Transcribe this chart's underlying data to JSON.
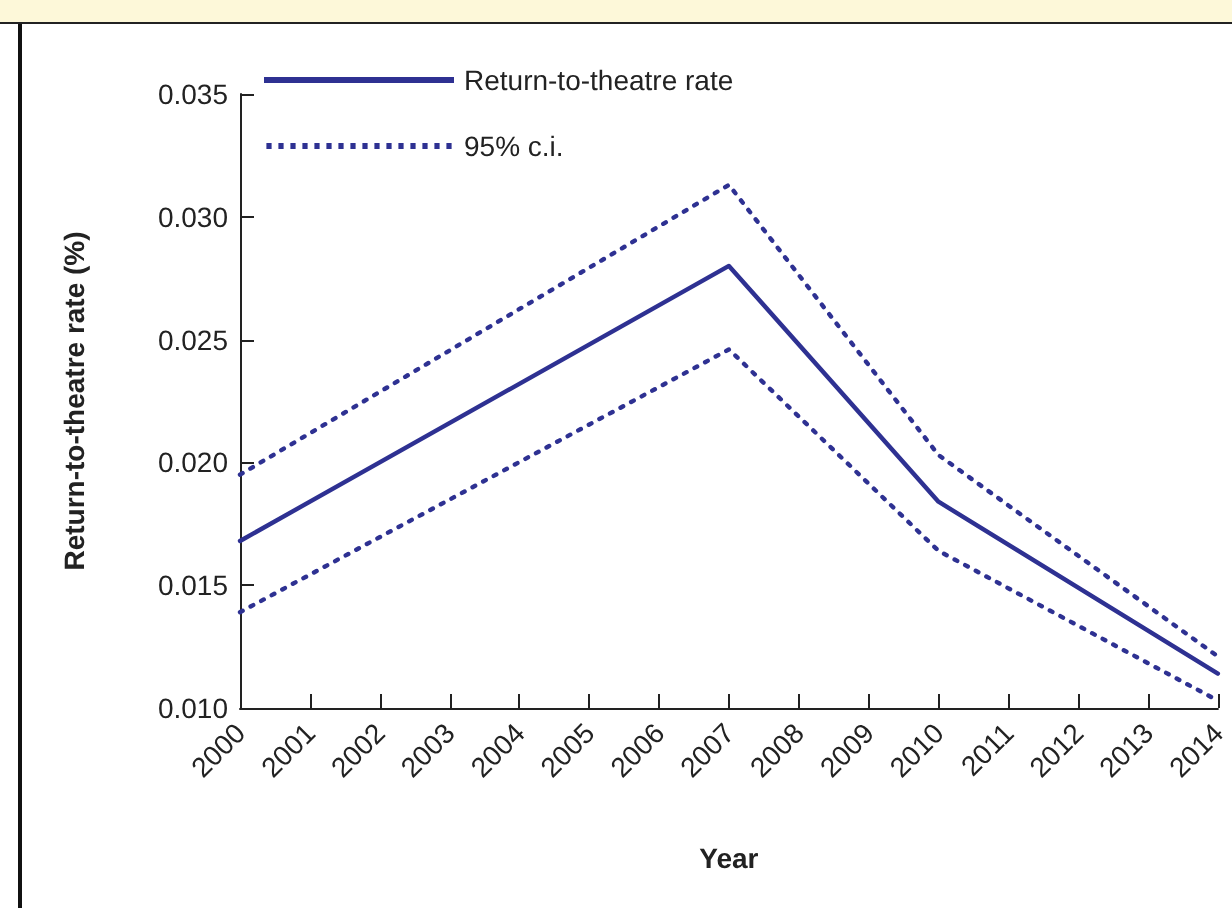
{
  "chart_data": {
    "type": "line",
    "xlabel": "Year",
    "ylabel": "Return-to-theatre rate (%)",
    "x": [
      2000,
      2007,
      2010,
      2014
    ],
    "series": [
      {
        "name": "Return-to-theatre rate",
        "color": "#2e3192",
        "values": [
          0.0168,
          0.028,
          0.0184,
          0.0114
        ],
        "line_style": "solid"
      },
      {
        "name": "95% c.i.",
        "color": "#2e3192",
        "values": [
          0.0195,
          0.0313,
          0.0203,
          0.0121
        ],
        "line_style": "dotted"
      },
      {
        "color": "#2e3192",
        "values": [
          0.0139,
          0.0246,
          0.0164,
          0.0103
        ],
        "line_style": "dotted"
      }
    ],
    "xlim": [
      2000,
      2014
    ],
    "xticks": [
      2000,
      2001,
      2002,
      2003,
      2004,
      2005,
      2006,
      2007,
      2008,
      2009,
      2010,
      2011,
      2012,
      2013,
      2014
    ],
    "ylim": [
      0.01,
      0.035
    ],
    "yticks": [
      {
        "value": 0.01,
        "label": "0.010"
      },
      {
        "value": 0.015,
        "label": "0.015"
      },
      {
        "value": 0.02,
        "label": "0.020"
      },
      {
        "value": 0.025,
        "label": "0.025"
      },
      {
        "value": 0.03,
        "label": "0.030"
      },
      {
        "value": 0.035,
        "label": "0.035"
      }
    ],
    "grid": false,
    "legend": "top left",
    "marker": "none"
  }
}
